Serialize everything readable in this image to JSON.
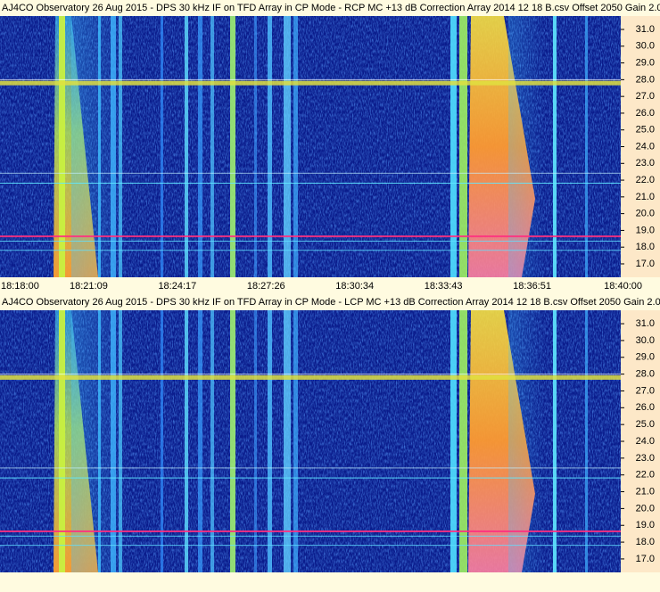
{
  "chart_data": [
    {
      "type": "spectrogram",
      "title": "AJ4CO Observatory 26 Aug 2015 - DPS 30 kHz IF on TFD Array in CP Mode - RCP  MC +13 dB  Correction Array 2014 12 18 B.csv  Offset 2050  Gain 2.0",
      "ylim": [
        16.2,
        31.8
      ],
      "yticks": [
        {
          "value": 17,
          "label": "17.0"
        },
        {
          "value": 18,
          "label": "18.0"
        },
        {
          "value": 19,
          "label": "19.0"
        },
        {
          "value": 20,
          "label": "20.0"
        },
        {
          "value": 21,
          "label": "21.0"
        },
        {
          "value": 22,
          "label": "22.0"
        },
        {
          "value": 23,
          "label": "23.0"
        },
        {
          "value": 24,
          "label": "24.0"
        },
        {
          "value": 25,
          "label": "25.0"
        },
        {
          "value": 26,
          "label": "26.0"
        },
        {
          "value": 27,
          "label": "27.0"
        },
        {
          "value": 28,
          "label": "28.0"
        },
        {
          "value": 29,
          "label": "29.0"
        },
        {
          "value": 30,
          "label": "30.0"
        },
        {
          "value": 31,
          "label": "31.0"
        }
      ],
      "xtick_labels": [
        "18:18:00",
        "18:21:09",
        "18:24:17",
        "18:27:26",
        "18:30:34",
        "18:33:43",
        "18:36:51",
        "18:40:00"
      ]
    },
    {
      "type": "spectrogram",
      "title": "AJ4CO Observatory 26 Aug 2015 - DPS 30 kHz IF on TFD Array in CP Mode - LCP  MC +13 dB  Correction Array 2014 12 18 B.csv  Offset 2050  Gain 2.0",
      "ylim": [
        16.2,
        31.8
      ],
      "yticks": [
        {
          "value": 17,
          "label": "17.0"
        },
        {
          "value": 18,
          "label": "18.0"
        },
        {
          "value": 19,
          "label": "19.0"
        },
        {
          "value": 20,
          "label": "20.0"
        },
        {
          "value": 21,
          "label": "21.0"
        },
        {
          "value": 22,
          "label": "22.0"
        },
        {
          "value": 23,
          "label": "23.0"
        },
        {
          "value": 24,
          "label": "24.0"
        },
        {
          "value": 25,
          "label": "25.0"
        },
        {
          "value": 26,
          "label": "26.0"
        },
        {
          "value": 27,
          "label": "27.0"
        },
        {
          "value": 28,
          "label": "28.0"
        },
        {
          "value": 29,
          "label": "29.0"
        },
        {
          "value": 30,
          "label": "30.0"
        },
        {
          "value": 31,
          "label": "31.0"
        }
      ]
    }
  ]
}
